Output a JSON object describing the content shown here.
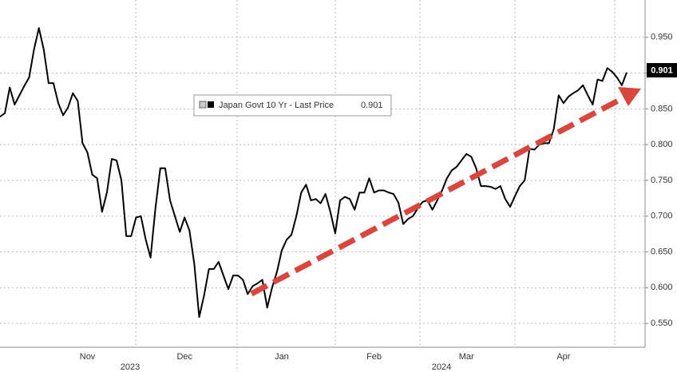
{
  "chart_data": {
    "type": "line",
    "legend": {
      "name_label": "Japan Govt 10 Yr - Last Price"
    },
    "categories": [
      null,
      null,
      null,
      null,
      null,
      null,
      null,
      null,
      null,
      null,
      null,
      null,
      null,
      null,
      null,
      null,
      null,
      null,
      "Nov",
      null,
      null,
      null,
      null,
      null,
      null,
      null,
      null,
      null,
      null,
      null,
      null,
      null,
      null,
      null,
      null,
      null,
      null,
      null,
      "Dec",
      null,
      null,
      null,
      null,
      null,
      null,
      null,
      null,
      null,
      null,
      null,
      null,
      null,
      null,
      null,
      null,
      null,
      null,
      null,
      "Jan",
      null,
      null,
      null,
      null,
      null,
      null,
      null,
      null,
      null,
      null,
      null,
      null,
      null,
      null,
      null,
      null,
      null,
      null,
      "Feb",
      null,
      null,
      null,
      null,
      null,
      null,
      null,
      null,
      null,
      null,
      null,
      null,
      null,
      null,
      null,
      null,
      null,
      null,
      "Mar",
      null,
      null,
      null,
      null,
      null,
      null,
      null,
      null,
      null,
      null,
      null,
      null,
      null,
      null,
      null,
      null,
      null,
      null,
      null,
      "Apr",
      null,
      null,
      null,
      null,
      null,
      null,
      null,
      null,
      null,
      null,
      null,
      null,
      null
    ],
    "years": [
      "2023",
      "2024"
    ],
    "series": [
      {
        "name": "Japan Govt 10 Yr - Last Price",
        "color": "#000000",
        "values": [
          0.839,
          0.844,
          0.88,
          0.856,
          0.869,
          0.882,
          0.894,
          0.933,
          0.963,
          0.933,
          0.886,
          0.886,
          0.858,
          0.841,
          0.852,
          0.872,
          0.861,
          0.802,
          0.789,
          0.758,
          0.753,
          0.706,
          0.733,
          0.78,
          0.778,
          0.75,
          0.672,
          0.672,
          0.698,
          0.7,
          0.667,
          0.642,
          0.711,
          0.767,
          0.767,
          0.722,
          0.7,
          0.678,
          0.698,
          0.68,
          0.633,
          0.559,
          0.589,
          0.626,
          0.626,
          0.636,
          0.617,
          0.598,
          0.617,
          0.617,
          0.611,
          0.591,
          0.602,
          0.606,
          0.611,
          0.572,
          0.6,
          0.622,
          0.652,
          0.667,
          0.674,
          0.7,
          0.733,
          0.744,
          0.722,
          0.724,
          0.718,
          0.731,
          0.706,
          0.676,
          0.722,
          0.727,
          0.724,
          0.709,
          0.733,
          0.733,
          0.753,
          0.733,
          0.736,
          0.736,
          0.733,
          0.731,
          0.719,
          0.689,
          0.696,
          0.7,
          0.711,
          0.72,
          0.722,
          0.709,
          0.722,
          0.736,
          0.753,
          0.764,
          0.769,
          0.778,
          0.787,
          0.783,
          0.767,
          0.742,
          0.742,
          0.741,
          0.738,
          0.742,
          0.724,
          0.713,
          0.728,
          0.742,
          0.75,
          0.794,
          0.793,
          0.8,
          0.802,
          0.802,
          0.822,
          0.869,
          0.858,
          0.867,
          0.872,
          0.876,
          0.883,
          0.869,
          0.856,
          0.891,
          0.889,
          0.907,
          0.902,
          0.894,
          0.883,
          0.901
        ]
      }
    ],
    "ylim": [
      0.52,
      1.0
    ],
    "yticks": [
      {
        "value": 0.55,
        "label": "0.550"
      },
      {
        "value": 0.6,
        "label": "0.600"
      },
      {
        "value": 0.65,
        "label": "0.650"
      },
      {
        "value": 0.7,
        "label": "0.700"
      },
      {
        "value": 0.75,
        "label": "0.750"
      },
      {
        "value": 0.8,
        "label": "0.800"
      },
      {
        "value": 0.85,
        "label": "0.850"
      },
      {
        "value": 0.9,
        "label": "0.900"
      },
      {
        "value": 0.95,
        "label": "0.950"
      }
    ],
    "grid": true
  }
}
